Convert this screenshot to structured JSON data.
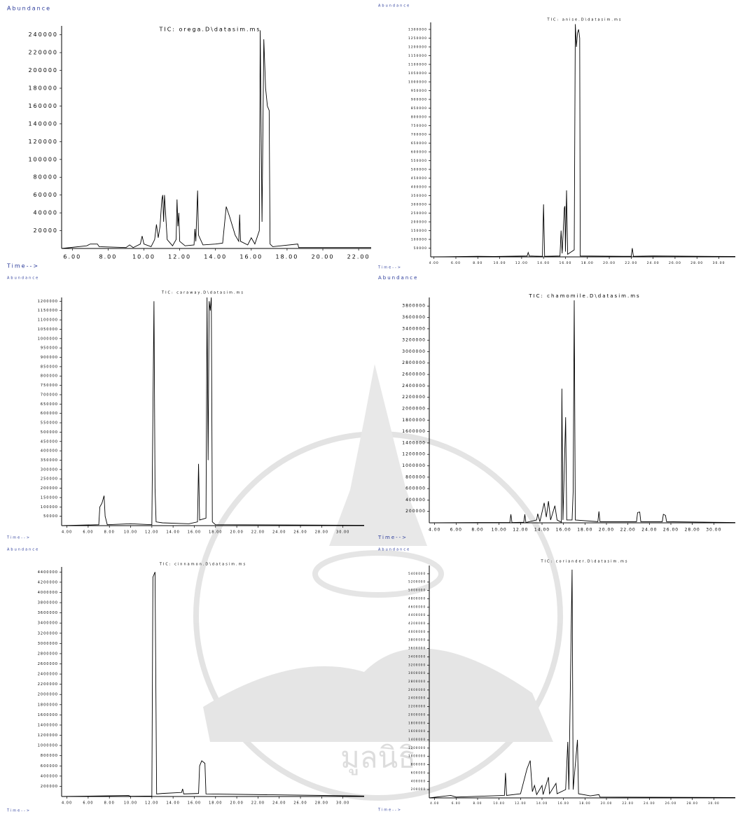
{
  "chart_data": [
    {
      "type": "line",
      "title": "TIC: orega.D\\datasim.ms",
      "y_label": "Abundance",
      "x_label": "Time-->",
      "color": "#000000",
      "x": [
        5.4,
        6.8,
        7.0,
        7.4,
        7.5,
        9.0,
        9.2,
        9.4,
        9.8,
        9.9,
        10.0,
        10.4,
        10.6,
        10.7,
        10.8,
        10.9,
        11.0,
        11.05,
        11.1,
        11.15,
        11.3,
        11.6,
        11.8,
        11.85,
        11.9,
        11.95,
        12.0,
        12.3,
        12.8,
        12.85,
        12.9,
        13.0,
        13.05,
        13.3,
        14.0,
        14.4,
        14.6,
        14.8,
        15.1,
        15.3,
        15.35,
        15.4,
        15.8,
        16.0,
        16.2,
        16.45,
        16.5,
        16.6,
        16.7,
        16.8,
        16.9,
        17.0,
        17.05,
        17.2,
        18.6,
        18.65,
        22.7
      ],
      "values": [
        0,
        3000,
        5000,
        5000,
        2000,
        1000,
        4000,
        1000,
        5000,
        14000,
        5000,
        2000,
        10000,
        27000,
        12000,
        25000,
        55000,
        60000,
        30000,
        60000,
        10000,
        3000,
        10000,
        55000,
        25000,
        40000,
        8000,
        3000,
        4000,
        22000,
        8000,
        65000,
        15000,
        4000,
        5000,
        6000,
        47000,
        35000,
        15000,
        8000,
        38000,
        8000,
        4000,
        12000,
        5000,
        20000,
        245000,
        30000,
        235000,
        180000,
        160000,
        155000,
        5000,
        2000,
        5000,
        1000,
        1000
      ],
      "xlim": [
        5.4,
        22.7
      ],
      "ylim": [
        0,
        250000
      ],
      "xticks": [
        {
          "value": 6,
          "label": "6.00"
        },
        {
          "value": 8,
          "label": "8.00"
        },
        {
          "value": 10,
          "label": "10.00"
        },
        {
          "value": 12,
          "label": "12.00"
        },
        {
          "value": 14,
          "label": "14.00"
        },
        {
          "value": 16,
          "label": "16.00"
        },
        {
          "value": 18,
          "label": "18.00"
        },
        {
          "value": 20,
          "label": "20.00"
        },
        {
          "value": 22,
          "label": "22.00"
        }
      ],
      "yticks": [
        20000,
        40000,
        60000,
        80000,
        100000,
        120000,
        140000,
        160000,
        180000,
        200000,
        220000,
        240000
      ]
    },
    {
      "type": "line",
      "title": "TIC: anise.D\\datasim.ms",
      "y_label": "Abundance",
      "x_label": "Time-->",
      "color": "#000000",
      "x": [
        3.7,
        8,
        9.5,
        12.5,
        12.6,
        12.7,
        13.9,
        14.0,
        14.1,
        15.5,
        15.6,
        15.7,
        15.9,
        15.95,
        16.0,
        16.1,
        16.2,
        16.8,
        16.9,
        17.0,
        17.1,
        17.2,
        17.3,
        17.35,
        22,
        22.1,
        22.2,
        24,
        31.5
      ],
      "values": [
        0,
        3000,
        2000,
        5000,
        25000,
        5000,
        3000,
        300000,
        3000,
        5000,
        150000,
        20000,
        280000,
        290000,
        30000,
        380000,
        15000,
        40000,
        1330000,
        1200000,
        1280000,
        1300000,
        1250000,
        5000,
        3000,
        50000,
        3000,
        5000,
        2000
      ],
      "xlim": [
        3.7,
        31.5
      ],
      "ylim": [
        0,
        1340000
      ],
      "xticks": [
        {
          "value": 4,
          "label": "4.00"
        },
        {
          "value": 6,
          "label": "6.00"
        },
        {
          "value": 8,
          "label": "8.00"
        },
        {
          "value": 10,
          "label": "10.00"
        },
        {
          "value": 12,
          "label": "12.00"
        },
        {
          "value": 14,
          "label": "14.00"
        },
        {
          "value": 16,
          "label": "16.00"
        },
        {
          "value": 18,
          "label": "18.00"
        },
        {
          "value": 20,
          "label": "20.00"
        },
        {
          "value": 22,
          "label": "22.00"
        },
        {
          "value": 24,
          "label": "24.00"
        },
        {
          "value": 26,
          "label": "26.00"
        },
        {
          "value": 28,
          "label": "28.00"
        },
        {
          "value": 30,
          "label": "30.00"
        }
      ],
      "yticks": [
        50000,
        100000,
        150000,
        200000,
        250000,
        300000,
        350000,
        400000,
        450000,
        500000,
        550000,
        600000,
        650000,
        700000,
        750000,
        800000,
        850000,
        900000,
        950000,
        1000000,
        1050000,
        1100000,
        1150000,
        1200000,
        1250000,
        1300000
      ]
    },
    {
      "type": "line",
      "title": "TIC: caraway.D\\datasim.ms",
      "y_label": "Abundance",
      "x_label": "Time-->",
      "color": "#000000",
      "x": [
        3.5,
        7.0,
        7.1,
        7.3,
        7.5,
        7.6,
        7.8,
        10,
        12.0,
        12.2,
        12.3,
        12.4,
        13,
        15.5,
        16.3,
        16.4,
        16.5,
        17.1,
        17.2,
        17.3,
        17.4,
        17.5,
        17.6,
        17.7,
        18,
        32
      ],
      "values": [
        0,
        5000,
        100000,
        120000,
        160000,
        50000,
        5000,
        10000,
        5000,
        1200000,
        200000,
        20000,
        15000,
        10000,
        20000,
        330000,
        30000,
        40000,
        1220000,
        350000,
        1200000,
        1150000,
        1220000,
        20000,
        5000,
        2000
      ],
      "xlim": [
        3.5,
        32
      ],
      "ylim": [
        0,
        1220000
      ],
      "xticks": [
        {
          "value": 4,
          "label": "4.00"
        },
        {
          "value": 6,
          "label": "6.00"
        },
        {
          "value": 8,
          "label": "8.00"
        },
        {
          "value": 10,
          "label": "10.00"
        },
        {
          "value": 12,
          "label": "12.00"
        },
        {
          "value": 14,
          "label": "14.00"
        },
        {
          "value": 16,
          "label": "16.00"
        },
        {
          "value": 18,
          "label": "18.00"
        },
        {
          "value": 20,
          "label": "20.00"
        },
        {
          "value": 22,
          "label": "22.00"
        },
        {
          "value": 24,
          "label": "24.00"
        },
        {
          "value": 26,
          "label": "26.00"
        },
        {
          "value": 28,
          "label": "28.00"
        },
        {
          "value": 30,
          "label": "30.00"
        }
      ],
      "yticks": [
        50000,
        100000,
        150000,
        200000,
        250000,
        300000,
        350000,
        400000,
        450000,
        500000,
        550000,
        600000,
        650000,
        700000,
        750000,
        800000,
        850000,
        900000,
        950000,
        1000000,
        1050000,
        1100000,
        1150000,
        1200000
      ]
    },
    {
      "type": "line",
      "title": "TIC: chamomile.D\\datasim.ms",
      "y_label": "Abundance",
      "x_label": "Time-->",
      "color": "#000000",
      "x": [
        3.5,
        8,
        11,
        11.1,
        11.2,
        12.3,
        12.4,
        12.5,
        13.5,
        13.6,
        13.8,
        14.2,
        14.4,
        14.6,
        14.8,
        15.2,
        15.4,
        15.8,
        15.85,
        15.95,
        16.2,
        16.3,
        16.8,
        16.9,
        17.0,
        17.1,
        19.2,
        19.3,
        19.4,
        22.8,
        22.9,
        23.1,
        23.2,
        25.2,
        25.3,
        25.5,
        25.6,
        32
      ],
      "values": [
        0,
        5000,
        5000,
        150000,
        5000,
        10000,
        150000,
        5000,
        50000,
        160000,
        20000,
        350000,
        100000,
        380000,
        50000,
        300000,
        50000,
        10000,
        2350000,
        50000,
        1850000,
        50000,
        50000,
        550000,
        3900000,
        50000,
        20000,
        200000,
        20000,
        20000,
        180000,
        190000,
        20000,
        20000,
        150000,
        130000,
        20000,
        5000
      ],
      "xlim": [
        3.5,
        32
      ],
      "ylim": [
        0,
        3950000
      ],
      "xticks": [
        {
          "value": 4,
          "label": "4.00"
        },
        {
          "value": 6,
          "label": "6.00"
        },
        {
          "value": 8,
          "label": "8.00"
        },
        {
          "value": 10,
          "label": "10.00"
        },
        {
          "value": 12,
          "label": "12.00"
        },
        {
          "value": 14,
          "label": "14.00"
        },
        {
          "value": 16,
          "label": "16.00"
        },
        {
          "value": 18,
          "label": "18.00"
        },
        {
          "value": 20,
          "label": "20.00"
        },
        {
          "value": 22,
          "label": "22.00"
        },
        {
          "value": 24,
          "label": "24.00"
        },
        {
          "value": 26,
          "label": "26.00"
        },
        {
          "value": 28,
          "label": "28.00"
        },
        {
          "value": 30,
          "label": "30.00"
        }
      ],
      "yticks": [
        200000,
        400000,
        600000,
        800000,
        1000000,
        1200000,
        1400000,
        1600000,
        1800000,
        2000000,
        2200000,
        2400000,
        2600000,
        2800000,
        3000000,
        3200000,
        3400000,
        3600000,
        3800000
      ]
    },
    {
      "type": "line",
      "title": "TIC: cinnamon.D\\datasim.ms",
      "y_label": "Abundance",
      "x_label": "Time-->",
      "color": "#000000",
      "x": [
        3.5,
        9.8,
        10,
        12.0,
        12.1,
        12.3,
        12.45,
        13,
        14.8,
        14.9,
        15,
        16.4,
        16.5,
        16.7,
        17.0,
        17.1,
        32
      ],
      "values": [
        0,
        20000,
        5000,
        10000,
        4300000,
        4400000,
        50000,
        60000,
        80000,
        150000,
        50000,
        60000,
        600000,
        700000,
        650000,
        50000,
        10000
      ],
      "xlim": [
        3.5,
        32
      ],
      "ylim": [
        0,
        4500000
      ],
      "xticks": [
        {
          "value": 4,
          "label": "4.00"
        },
        {
          "value": 6,
          "label": "6.00"
        },
        {
          "value": 8,
          "label": "8.00"
        },
        {
          "value": 10,
          "label": "10.00"
        },
        {
          "value": 12,
          "label": "12.00"
        },
        {
          "value": 14,
          "label": "14.00"
        },
        {
          "value": 16,
          "label": "16.00"
        },
        {
          "value": 18,
          "label": "18.00"
        },
        {
          "value": 20,
          "label": "20.00"
        },
        {
          "value": 22,
          "label": "22.00"
        },
        {
          "value": 24,
          "label": "24.00"
        },
        {
          "value": 26,
          "label": "26.00"
        },
        {
          "value": 28,
          "label": "28.00"
        },
        {
          "value": 30,
          "label": "30.00"
        }
      ],
      "yticks": [
        200000,
        400000,
        600000,
        800000,
        1000000,
        1200000,
        1400000,
        1600000,
        1800000,
        2000000,
        2200000,
        2400000,
        2600000,
        2800000,
        3000000,
        3200000,
        3400000,
        3600000,
        3800000,
        4000000,
        4200000,
        4400000
      ]
    },
    {
      "type": "line",
      "title": "TIC: coriander.D\\datasim.ms",
      "y_label": "Abundance",
      "x_label": "Time-->",
      "color": "#000000",
      "x": [
        3.5,
        5.5,
        6,
        10.5,
        10.6,
        10.7,
        12,
        12.6,
        12.9,
        13.1,
        13.3,
        13.5,
        14,
        14.1,
        14.6,
        14.7,
        15.3,
        15.4,
        16.2,
        16.4,
        16.5,
        16.8,
        16.9,
        17.3,
        17.4,
        18.5,
        19.3,
        19.4,
        32
      ],
      "values": [
        0,
        60000,
        20000,
        60000,
        600000,
        60000,
        100000,
        700000,
        900000,
        150000,
        300000,
        80000,
        300000,
        80000,
        500000,
        100000,
        350000,
        100000,
        200000,
        1350000,
        200000,
        5500000,
        200000,
        1400000,
        100000,
        50000,
        80000,
        20000,
        10000
      ],
      "xlim": [
        3.5,
        32
      ],
      "ylim": [
        0,
        5600000
      ],
      "xticks": [
        {
          "value": 4,
          "label": "4.00"
        },
        {
          "value": 6,
          "label": "6.00"
        },
        {
          "value": 8,
          "label": "8.00"
        },
        {
          "value": 10,
          "label": "10.00"
        },
        {
          "value": 12,
          "label": "12.00"
        },
        {
          "value": 14,
          "label": "14.00"
        },
        {
          "value": 16,
          "label": "16.00"
        },
        {
          "value": 18,
          "label": "18.00"
        },
        {
          "value": 20,
          "label": "20.00"
        },
        {
          "value": 22,
          "label": "22.00"
        },
        {
          "value": 24,
          "label": "24.00"
        },
        {
          "value": 26,
          "label": "26.00"
        },
        {
          "value": 28,
          "label": "28.00"
        },
        {
          "value": 30,
          "label": "30.00"
        }
      ],
      "yticks": [
        200000,
        400000,
        600000,
        800000,
        1000000,
        1200000,
        1400000,
        1600000,
        1800000,
        2000000,
        2200000,
        2400000,
        2600000,
        2800000,
        3000000,
        3200000,
        3400000,
        3600000,
        3800000,
        4000000,
        4200000,
        4400000,
        4600000,
        4800000,
        5000000,
        5200000,
        5400000
      ]
    }
  ],
  "watermark": "มูลนิธิ"
}
